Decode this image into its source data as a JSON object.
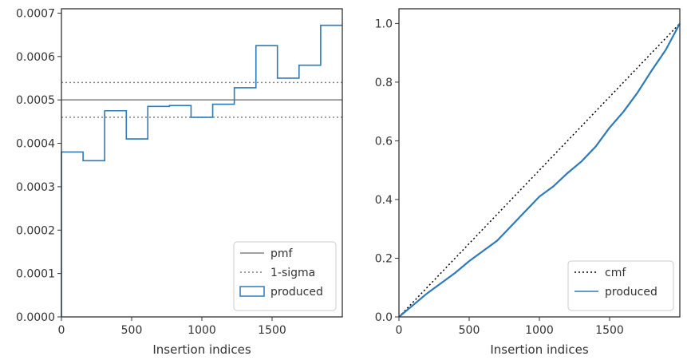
{
  "chart_data": [
    {
      "type": "line",
      "xlabel": "Insertion indices",
      "ylabel": "",
      "xlim": [
        0,
        2000
      ],
      "ylim": [
        0,
        0.00071
      ],
      "xticks": [
        0,
        500,
        1000,
        1500
      ],
      "xtick_labels": [
        "0",
        "500",
        "1000",
        "1500"
      ],
      "yticks": [
        0,
        0.0001,
        0.0002,
        0.0003,
        0.0004,
        0.0005,
        0.0006,
        0.0007
      ],
      "ytick_labels": [
        "0.0000",
        "0.0001",
        "0.0002",
        "0.0003",
        "0.0004",
        "0.0005",
        "0.0006",
        "0.0007"
      ],
      "legend_position": "bottom-right",
      "series": [
        {
          "name": "pmf",
          "kind": "hline",
          "y": 0.0005,
          "color": "#808080",
          "style": "solid"
        },
        {
          "name": "1-sigma",
          "kind": "hlines",
          "y": [
            0.00046,
            0.00054
          ],
          "color": "#808080",
          "style": "dotted"
        },
        {
          "name": "produced",
          "kind": "step",
          "color": "#2e7ab8",
          "bin_edges": [
            0,
            154,
            308,
            462,
            615,
            769,
            923,
            1077,
            1231,
            1385,
            1538,
            1692,
            1846,
            2000
          ],
          "values": [
            0.00038,
            0.00036,
            0.000475,
            0.00041,
            0.000485,
            0.000487,
            0.00046,
            0.00049,
            0.000528,
            0.000625,
            0.00055,
            0.00058,
            0.000672
          ]
        }
      ]
    },
    {
      "type": "line",
      "xlabel": "Insertion indices",
      "ylabel": "",
      "xlim": [
        0,
        2000
      ],
      "ylim": [
        0,
        1.05
      ],
      "xticks": [
        0,
        500,
        1000,
        1500
      ],
      "xtick_labels": [
        "0",
        "500",
        "1000",
        "1500"
      ],
      "yticks": [
        0,
        0.2,
        0.4,
        0.6,
        0.8,
        1.0
      ],
      "ytick_labels": [
        "0.0",
        "0.2",
        "0.4",
        "0.6",
        "0.8",
        "1.0"
      ],
      "legend_position": "bottom-right",
      "series": [
        {
          "name": "cmf",
          "kind": "line",
          "color": "#000000",
          "style": "dotted",
          "x": [
            0,
            2000
          ],
          "y": [
            0,
            1.0
          ]
        },
        {
          "name": "produced",
          "kind": "line",
          "color": "#2e7ab8",
          "x": [
            0,
            100,
            200,
            300,
            400,
            500,
            600,
            700,
            800,
            900,
            1000,
            1100,
            1200,
            1300,
            1400,
            1500,
            1600,
            1700,
            1800,
            1900,
            2000
          ],
          "y": [
            0,
            0.04,
            0.08,
            0.115,
            0.15,
            0.19,
            0.225,
            0.26,
            0.31,
            0.36,
            0.41,
            0.445,
            0.49,
            0.53,
            0.58,
            0.645,
            0.7,
            0.765,
            0.84,
            0.91,
            1.0
          ]
        }
      ]
    }
  ]
}
